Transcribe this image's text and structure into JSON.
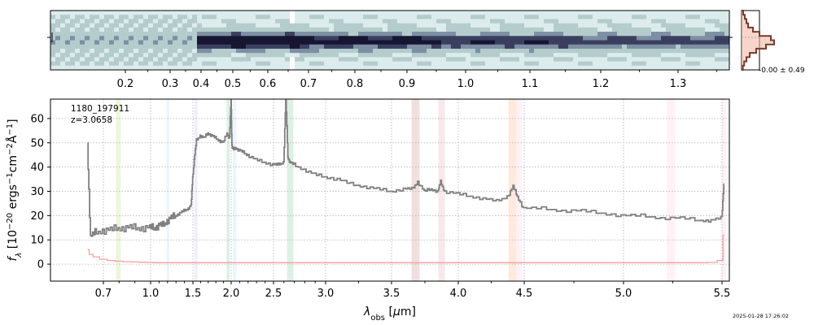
{
  "chart_data": [
    {
      "type": "heatmap",
      "name": "2D spectrum",
      "colors": [
        "#ffffff",
        "#dcecec",
        "#b4cccc",
        "#7d8fa3",
        "#3a3f60",
        "#161631"
      ],
      "top_axis_ticks": [
        "0.2",
        "0.3",
        "0.4",
        "0.5",
        "0.6",
        "0.7",
        "0.8",
        "0.9",
        "1.0",
        "1.1",
        "1.2",
        "1.3"
      ]
    },
    {
      "type": "step",
      "name": "spatial profile",
      "annotation": "-0.00 ± 0.49",
      "colors": {
        "fill": "#f4b9a6",
        "line": "#7a3b2a"
      }
    },
    {
      "type": "line",
      "name": "1D spectrum",
      "title": "",
      "xlabel": "λ_obs [μm]",
      "ylabel": "f_λ [10^-20 ergs^-1cm^-2Å^-1]",
      "label_id": "1180_197911",
      "label_z": "z=3.0658",
      "xlim": [
        0.6,
        5.52
      ],
      "ylim": [
        -7,
        68
      ],
      "xticks": [
        "0.7",
        "1.0",
        "1.5",
        "2.0",
        "2.5",
        "3.0",
        "3.5",
        "4.0",
        "4.5",
        "5.0",
        "5.5"
      ],
      "yticks": [
        "0",
        "10",
        "20",
        "30",
        "40",
        "50",
        "60"
      ],
      "grid": true,
      "x": [
        0.6,
        0.62,
        0.65,
        0.7,
        0.75,
        0.8,
        0.85,
        0.9,
        0.95,
        1.0,
        1.05,
        1.1,
        1.15,
        1.2,
        1.25,
        1.3,
        1.35,
        1.4,
        1.45,
        1.48,
        1.5,
        1.52,
        1.55,
        1.6,
        1.65,
        1.7,
        1.75,
        1.8,
        1.85,
        1.9,
        1.95,
        1.98,
        2.0,
        2.01,
        2.03,
        2.05,
        2.1,
        2.15,
        2.2,
        2.3,
        2.4,
        2.5,
        2.55,
        2.6,
        2.62,
        2.64,
        2.66,
        2.7,
        2.8,
        2.9,
        3.0,
        3.1,
        3.2,
        3.3,
        3.4,
        3.5,
        3.6,
        3.66,
        3.7,
        3.75,
        3.8,
        3.85,
        3.87,
        3.9,
        4.0,
        4.1,
        4.2,
        4.3,
        4.38,
        4.42,
        4.45,
        4.5,
        4.6,
        4.7,
        4.8,
        4.9,
        5.0,
        5.1,
        5.2,
        5.3,
        5.4,
        5.45,
        5.5,
        5.51
      ],
      "values": [
        50,
        11,
        13,
        14,
        14,
        15,
        15,
        15,
        15,
        15,
        15,
        16,
        16,
        18,
        19,
        20,
        21,
        22,
        23,
        24,
        36,
        43,
        51,
        53,
        52,
        54,
        53,
        52,
        51,
        50,
        54,
        52,
        69,
        49,
        47,
        48,
        47,
        46,
        45,
        43,
        42,
        41,
        41,
        42,
        69,
        44,
        42,
        41,
        39,
        37,
        36,
        35,
        33,
        32,
        31,
        30,
        31,
        31,
        34,
        30,
        31,
        30,
        34,
        30,
        29,
        28,
        27,
        26,
        28,
        32,
        28,
        23,
        23,
        22,
        22,
        21,
        20,
        20,
        19,
        19,
        18,
        18,
        19,
        33
      ],
      "error_values": [
        6,
        4,
        3,
        2,
        1.5,
        1.2,
        1,
        0.9,
        0.8,
        0.7,
        0.6,
        0.6,
        0.6,
        0.6,
        0.6,
        0.6,
        0.6,
        0.6,
        0.6,
        0.6,
        0.6,
        0.6,
        0.6,
        0.6,
        0.6,
        0.6,
        0.6,
        0.6,
        0.6,
        0.6,
        0.6,
        0.6,
        0.6,
        0.6,
        0.6,
        0.6,
        0.6,
        0.6,
        0.6,
        0.6,
        0.6,
        0.6,
        0.6,
        0.6,
        0.6,
        0.6,
        0.6,
        0.6,
        0.6,
        0.6,
        0.6,
        0.6,
        0.6,
        0.6,
        0.6,
        0.6,
        0.6,
        0.6,
        0.6,
        0.6,
        0.6,
        0.6,
        0.6,
        0.6,
        0.6,
        0.6,
        0.6,
        0.6,
        0.6,
        0.6,
        0.6,
        0.6,
        0.6,
        0.6,
        0.6,
        0.6,
        0.6,
        0.6,
        0.6,
        0.6,
        0.6,
        0.7,
        1.5,
        12
      ],
      "bands": [
        {
          "x": [
            0.78,
            0.81
          ],
          "color": "#9acd32"
        },
        {
          "x": [
            1.19,
            1.22
          ],
          "color": "#87cefa"
        },
        {
          "x": [
            1.52,
            1.56
          ],
          "color": "#b0a0e0"
        },
        {
          "x": [
            1.94,
            1.98
          ],
          "color": "#3cb371"
        },
        {
          "x": [
            2.02,
            2.06
          ],
          "color": "#87cefa"
        },
        {
          "x": [
            2.63,
            2.69
          ],
          "color": "#3cb371"
        },
        {
          "x": [
            3.65,
            3.71
          ],
          "color": "#b05050"
        },
        {
          "x": [
            3.85,
            3.9
          ],
          "color": "#d88090"
        },
        {
          "x": [
            4.38,
            4.44
          ],
          "color": "#ff8c40"
        },
        {
          "x": [
            4.44,
            4.48
          ],
          "color": "#ffb0d0"
        },
        {
          "x": [
            5.22,
            5.26
          ],
          "color": "#ffb0d0"
        },
        {
          "x": [
            5.5,
            5.52
          ],
          "color": "#ffb0d0"
        }
      ],
      "colors": {
        "spectrum": "#808080",
        "error": "#f5a0a0"
      }
    }
  ],
  "timestamp": "2025-01-28 17:26:02"
}
